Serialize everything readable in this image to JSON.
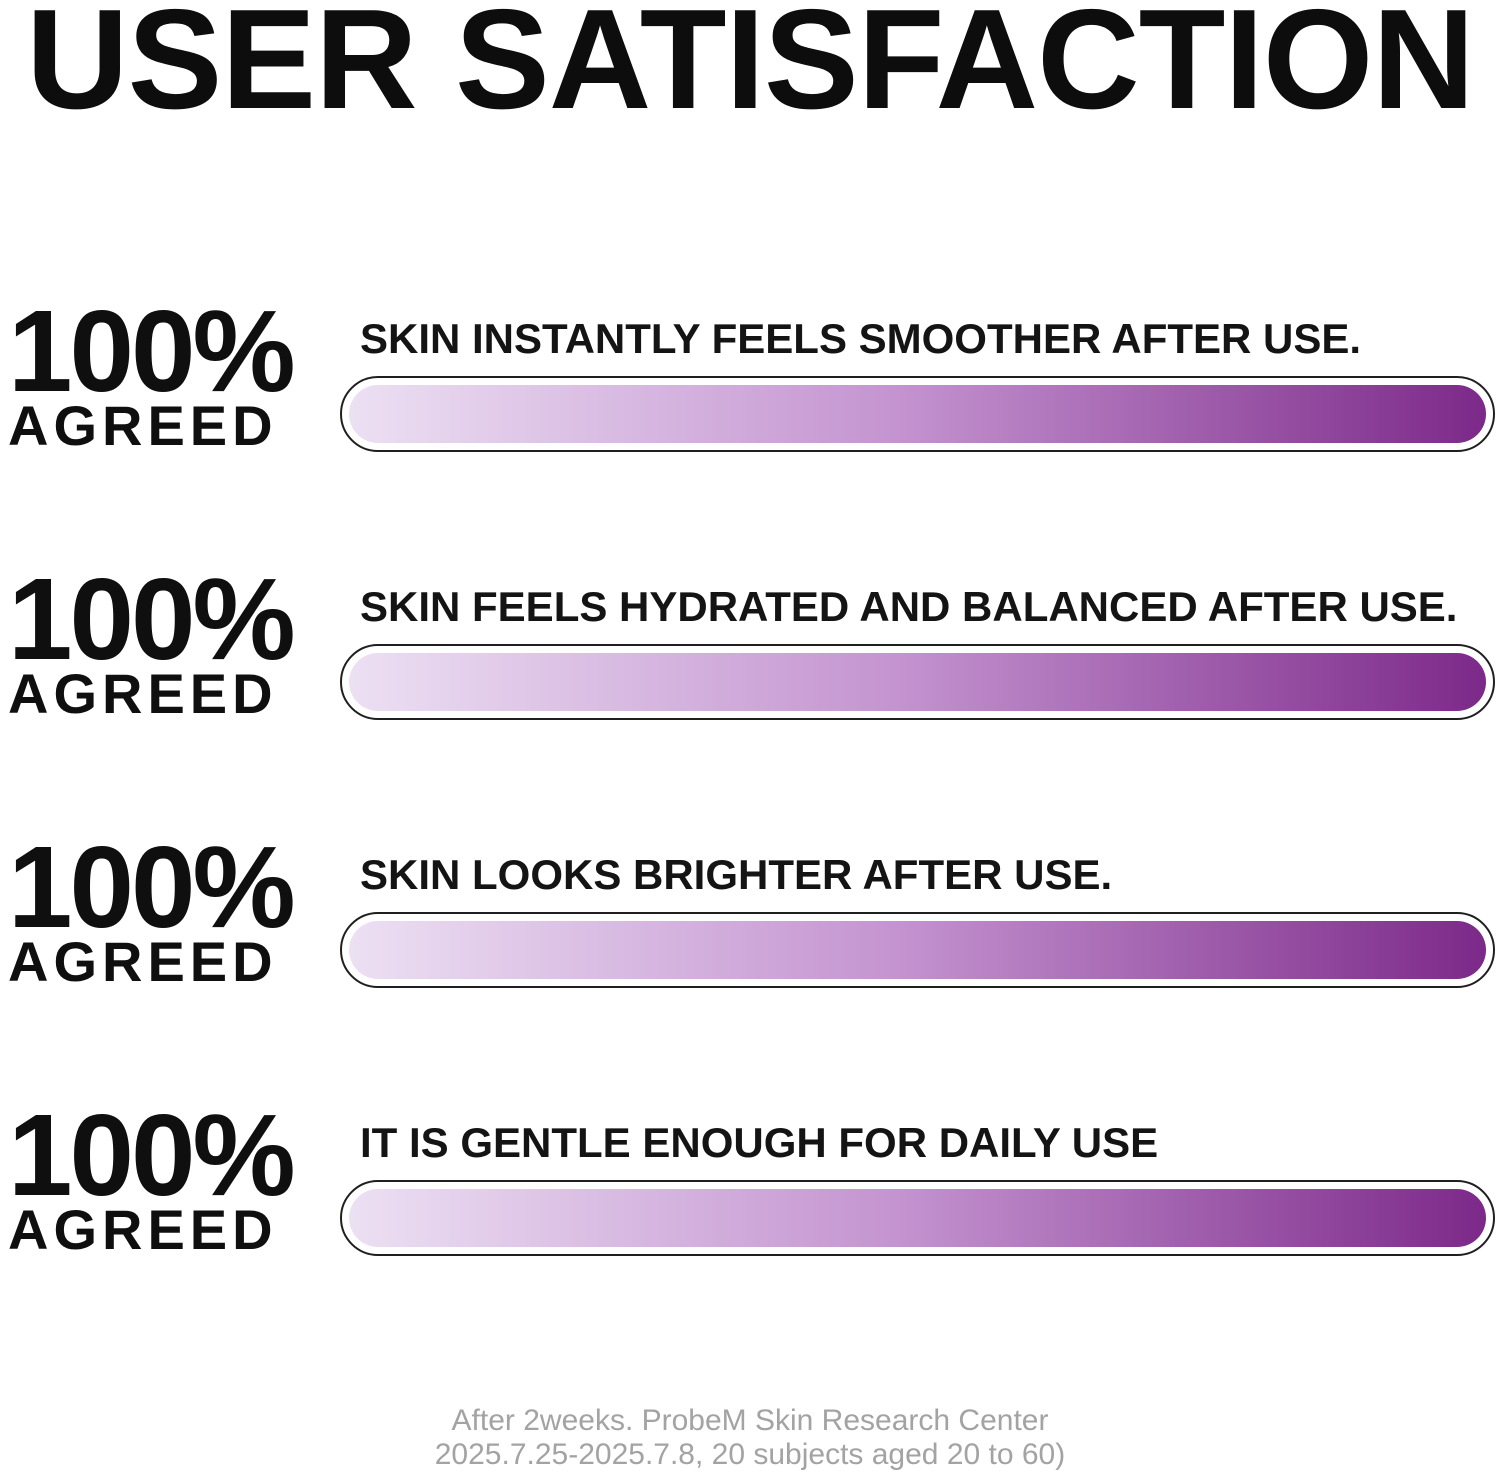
{
  "title": "USER SATISFACTION",
  "rows": [
    {
      "percent": "100%",
      "agreed_label": "AGREED",
      "statement": "SKIN INSTANTLY FEELS SMOOTHER AFTER USE.",
      "value_pct": 100
    },
    {
      "percent": "100%",
      "agreed_label": "AGREED",
      "statement": "SKIN FEELS HYDRATED AND BALANCED AFTER USE.",
      "value_pct": 100
    },
    {
      "percent": "100%",
      "agreed_label": "AGREED",
      "statement": "SKIN LOOKS BRIGHTER AFTER USE.",
      "value_pct": 100
    },
    {
      "percent": "100%",
      "agreed_label": "AGREED",
      "statement": "IT IS GENTLE ENOUGH FOR DAILY USE",
      "value_pct": 100
    }
  ],
  "footer": {
    "line1": "After 2weeks. ProbeM Skin Research Center",
    "line2": "2025.7.25-2025.7.8, 20 subjects aged 20 to 60)"
  },
  "colors": {
    "bar_gradient_start": "#ece0f3",
    "bar_gradient_mid": "#c494d0",
    "bar_gradient_end": "#7c2989",
    "bar_border": "#1f1f1f",
    "heading_text": "#0d0d0d",
    "footer_text": "#a3a3a3",
    "background": "#ffffff"
  },
  "chart_data": {
    "type": "bar",
    "orientation": "horizontal",
    "title": "USER SATISFACTION",
    "categories": [
      "SKIN INSTANTLY FEELS SMOOTHER AFTER USE.",
      "SKIN FEELS HYDRATED AND BALANCED AFTER USE.",
      "SKIN LOOKS BRIGHTER AFTER USE.",
      "IT IS GENTLE ENOUGH FOR DAILY USE"
    ],
    "series": [
      {
        "name": "AGREED",
        "values": [
          100,
          100,
          100,
          100
        ]
      }
    ],
    "unit": "%",
    "xlim": [
      0,
      100
    ],
    "value_labels": [
      "100% AGREED",
      "100% AGREED",
      "100% AGREED",
      "100% AGREED"
    ],
    "grid": false,
    "legend": false,
    "note": "After 2weeks. ProbeM Skin Research Center 2025.7.25-2025.7.8, 20 subjects aged 20 to 60)"
  }
}
